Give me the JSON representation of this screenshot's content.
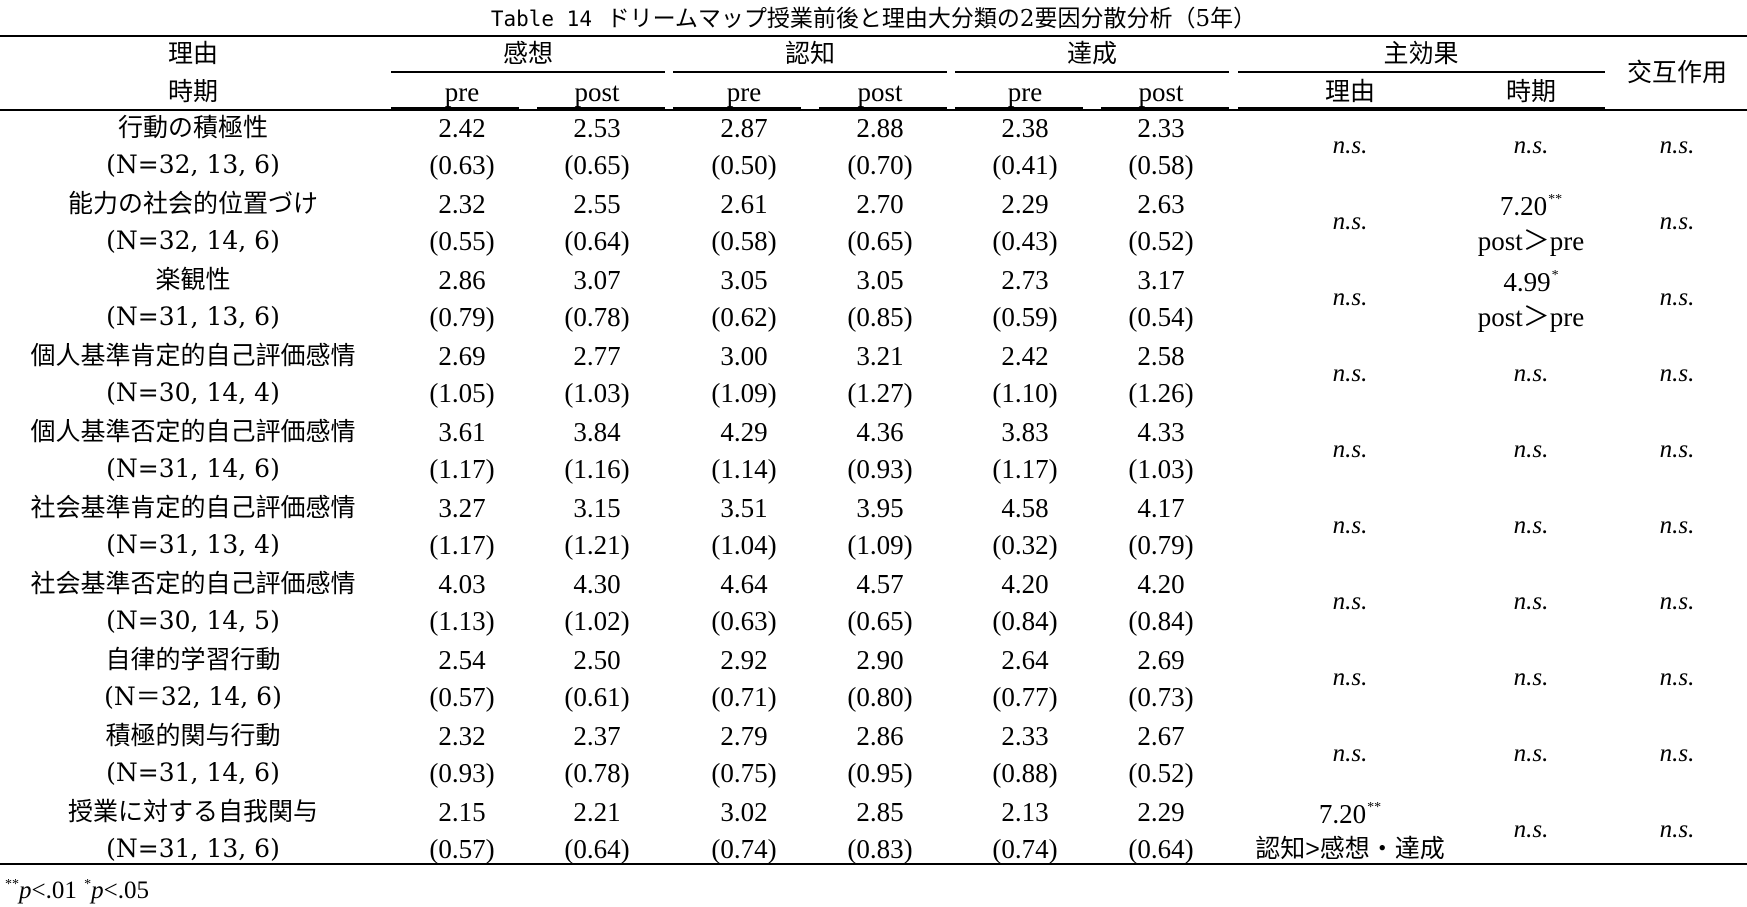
{
  "title": {
    "prefix": "Table 14",
    "text": "ドリームマップ授業前後と理由大分類の2要因分散分析（5年）"
  },
  "header": {
    "row_label_top": "理由",
    "row_label_bottom": "時期",
    "groups": [
      "感想",
      "認知",
      "達成"
    ],
    "pre": "pre",
    "post": "post",
    "main_effect": "主効果",
    "main_effect_reason": "理由",
    "main_effect_time": "時期",
    "interaction": "交互作用"
  },
  "rows": [
    {
      "name": "行動の積極性",
      "n": "(N=32, 13, 6)",
      "means": [
        "2.42",
        "2.53",
        "2.87",
        "2.88",
        "2.38",
        "2.33"
      ],
      "sds": [
        "(0.63)",
        "(0.65)",
        "(0.50)",
        "(0.70)",
        "(0.41)",
        "(0.58)"
      ],
      "reason": {
        "value": "n.s.",
        "sig": "",
        "note": ""
      },
      "time": {
        "value": "n.s.",
        "sig": "",
        "note": ""
      },
      "interaction": "n.s."
    },
    {
      "name": "能力の社会的位置づけ",
      "n": "(N=32, 14, 6)",
      "means": [
        "2.32",
        "2.55",
        "2.61",
        "2.70",
        "2.29",
        "2.63"
      ],
      "sds": [
        "(0.55)",
        "(0.64)",
        "(0.58)",
        "(0.65)",
        "(0.43)",
        "(0.52)"
      ],
      "reason": {
        "value": "n.s.",
        "sig": "",
        "note": ""
      },
      "time": {
        "value": "7.20",
        "sig": "**",
        "note": "post＞pre"
      },
      "interaction": "n.s."
    },
    {
      "name": "楽観性",
      "n": "(N=31, 13, 6)",
      "means": [
        "2.86",
        "3.07",
        "3.05",
        "3.05",
        "2.73",
        "3.17"
      ],
      "sds": [
        "(0.79)",
        "(0.78)",
        "(0.62)",
        "(0.85)",
        "(0.59)",
        "(0.54)"
      ],
      "reason": {
        "value": "n.s.",
        "sig": "",
        "note": ""
      },
      "time": {
        "value": "4.99",
        "sig": "*",
        "note": "post＞pre"
      },
      "interaction": "n.s."
    },
    {
      "name": "個人基準肯定的自己評価感情",
      "n": "(N=30, 14, 4)",
      "means": [
        "2.69",
        "2.77",
        "3.00",
        "3.21",
        "2.42",
        "2.58"
      ],
      "sds": [
        "(1.05)",
        "(1.03)",
        "(1.09)",
        "(1.27)",
        "(1.10)",
        "(1.26)"
      ],
      "reason": {
        "value": "n.s.",
        "sig": "",
        "note": ""
      },
      "time": {
        "value": "n.s.",
        "sig": "",
        "note": ""
      },
      "interaction": "n.s."
    },
    {
      "name": "個人基準否定的自己評価感情",
      "n": "(N=31, 14, 6)",
      "means": [
        "3.61",
        "3.84",
        "4.29",
        "4.36",
        "3.83",
        "4.33"
      ],
      "sds": [
        "(1.17)",
        "(1.16)",
        "(1.14)",
        "(0.93)",
        "(1.17)",
        "(1.03)"
      ],
      "reason": {
        "value": "n.s.",
        "sig": "",
        "note": ""
      },
      "time": {
        "value": "n.s.",
        "sig": "",
        "note": ""
      },
      "interaction": "n.s."
    },
    {
      "name": "社会基準肯定的自己評価感情",
      "n": "(N=31, 13, 4)",
      "means": [
        "3.27",
        "3.15",
        "3.51",
        "3.95",
        "4.58",
        "4.17"
      ],
      "sds": [
        "(1.17)",
        "(1.21)",
        "(1.04)",
        "(1.09)",
        "(0.32)",
        "(0.79)"
      ],
      "reason": {
        "value": "n.s.",
        "sig": "",
        "note": ""
      },
      "time": {
        "value": "n.s.",
        "sig": "",
        "note": ""
      },
      "interaction": "n.s."
    },
    {
      "name": "社会基準否定的自己評価感情",
      "n": "(N=30, 14, 5)",
      "means": [
        "4.03",
        "4.30",
        "4.64",
        "4.57",
        "4.20",
        "4.20"
      ],
      "sds": [
        "(1.13)",
        "(1.02)",
        "(0.63)",
        "(0.65)",
        "(0.84)",
        "(0.84)"
      ],
      "reason": {
        "value": "n.s.",
        "sig": "",
        "note": ""
      },
      "time": {
        "value": "n.s.",
        "sig": "",
        "note": ""
      },
      "interaction": "n.s."
    },
    {
      "name": "自律的学習行動",
      "n": "(N＝32, 14, 6)",
      "means": [
        "2.54",
        "2.50",
        "2.92",
        "2.90",
        "2.64",
        "2.69"
      ],
      "sds": [
        "(0.57)",
        "(0.61)",
        "(0.71)",
        "(0.80)",
        "(0.77)",
        "(0.73)"
      ],
      "reason": {
        "value": "n.s.",
        "sig": "",
        "note": ""
      },
      "time": {
        "value": "n.s.",
        "sig": "",
        "note": ""
      },
      "interaction": "n.s."
    },
    {
      "name": "積極的関与行動",
      "n": "(N=31, 14, 6)",
      "means": [
        "2.32",
        "2.37",
        "2.79",
        "2.86",
        "2.33",
        "2.67"
      ],
      "sds": [
        "(0.93)",
        "(0.78)",
        "(0.75)",
        "(0.95)",
        "(0.88)",
        "(0.52)"
      ],
      "reason": {
        "value": "n.s.",
        "sig": "",
        "note": ""
      },
      "time": {
        "value": "n.s.",
        "sig": "",
        "note": ""
      },
      "interaction": "n.s."
    },
    {
      "name": "授業に対する自我関与",
      "n": "(N=31, 13, 6)",
      "means": [
        "2.15",
        "2.21",
        "3.02",
        "2.85",
        "2.13",
        "2.29"
      ],
      "sds": [
        "(0.57)",
        "(0.64)",
        "(0.74)",
        "(0.83)",
        "(0.74)",
        "(0.64)"
      ],
      "reason": {
        "value": "7.20",
        "sig": "**",
        "note": "認知>感想・達成"
      },
      "time": {
        "value": "n.s.",
        "sig": "",
        "note": ""
      },
      "interaction": "n.s."
    }
  ],
  "footnote": {
    "sig2": "**",
    "p2": "p",
    "lt2": "<.01",
    "sig1": "*",
    "p1": "p",
    "lt1": "<.05"
  }
}
